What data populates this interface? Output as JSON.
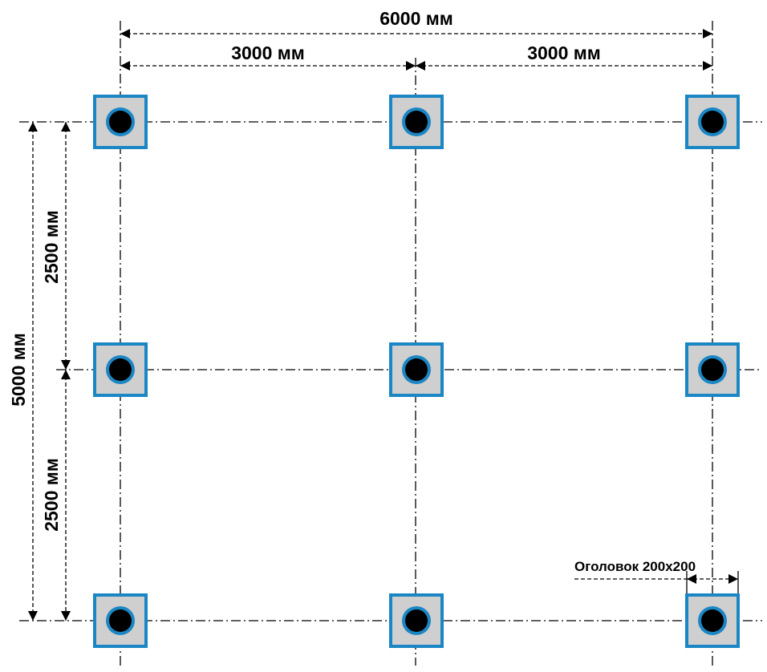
{
  "colors": {
    "background": "#ffffff",
    "cap_fill": "#cfcfcf",
    "cap_border": "#1b86c4",
    "pile_ring": "#1b86c4",
    "pile_core": "#000000",
    "lines": "#000000"
  },
  "dimensions": {
    "total_width": "6000 мм",
    "span_left": "3000 мм",
    "span_right": "3000 мм",
    "total_height": "5000 мм",
    "span_top": "2500 мм",
    "span_bottom": "2500 мм"
  },
  "annotation": {
    "cap_label": "Оголовок 200х200"
  },
  "grid": {
    "columns_mm": [
      0,
      3000,
      6000
    ],
    "rows_mm": [
      0,
      2500,
      5000
    ],
    "cap_size_mm": 200
  }
}
